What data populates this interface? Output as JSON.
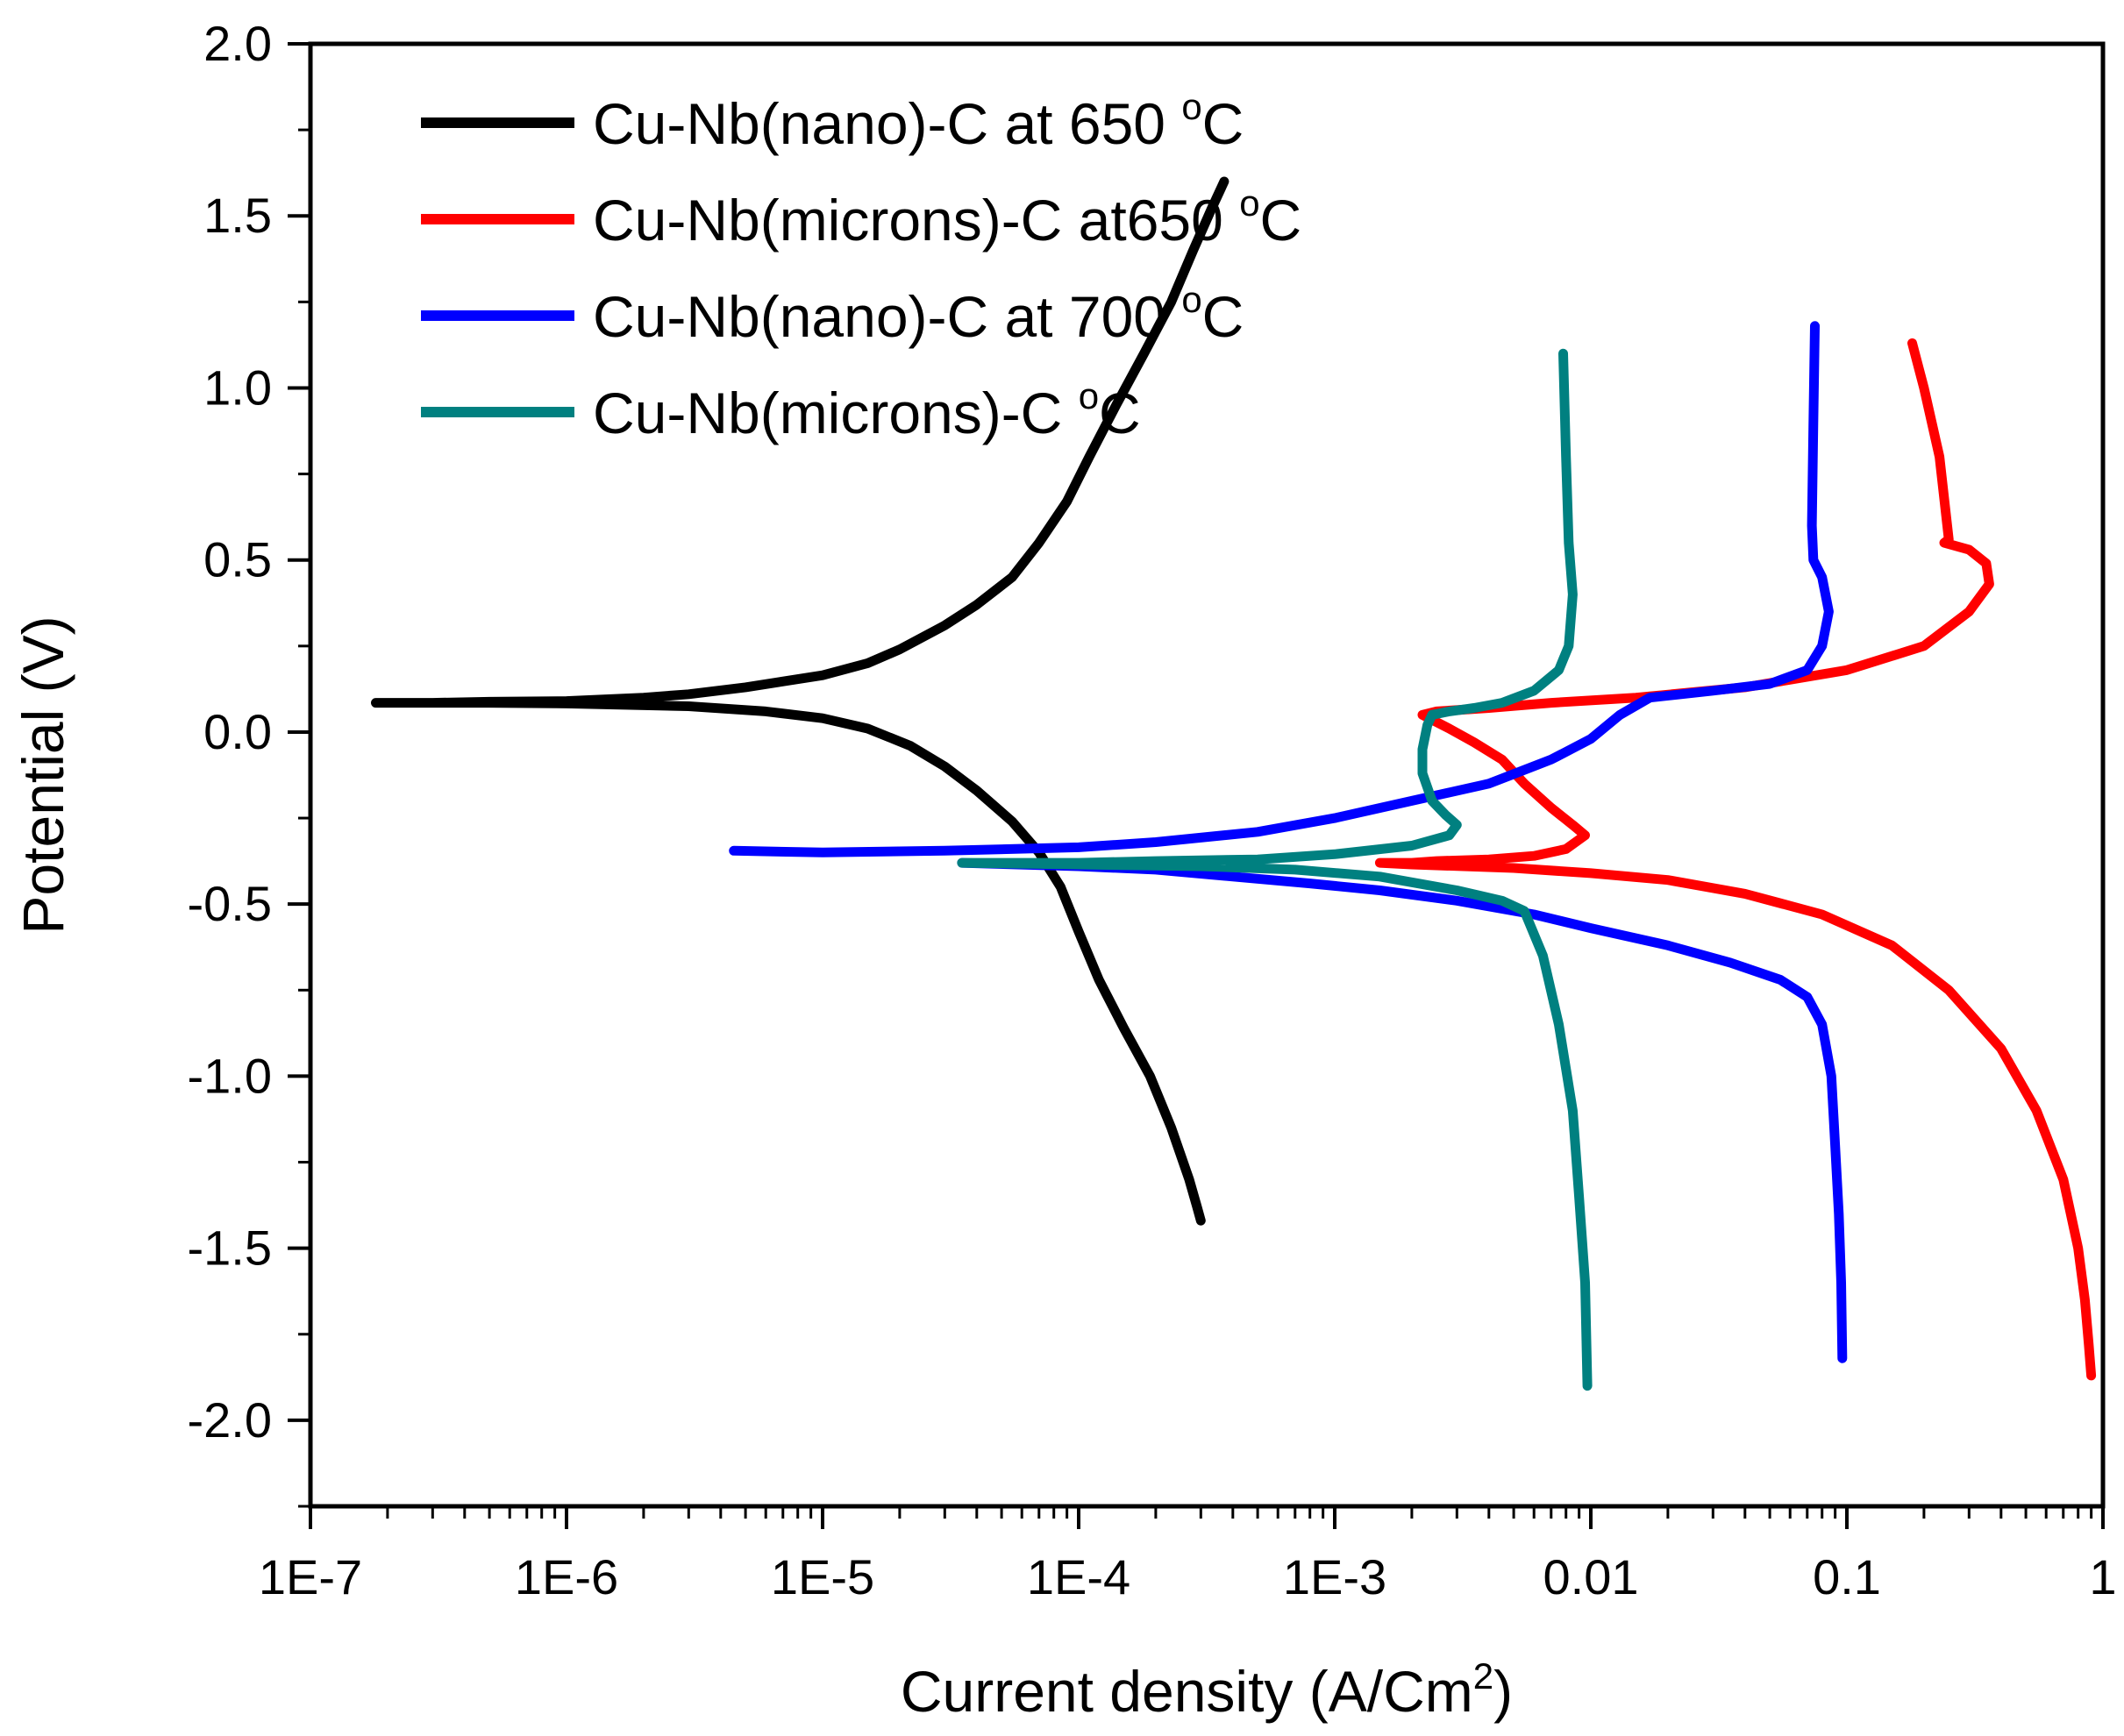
{
  "chart_data": {
    "type": "line",
    "title": "",
    "xlabel": "Current density (A/Cm",
    "xlabel_sup": "2",
    "xlabel_end": ")",
    "ylabel": "Potential (V)",
    "xscale": "log",
    "xlim": [
      1e-07,
      1
    ],
    "ylim": [
      -2.25,
      2.0
    ],
    "x_ticks": [
      1e-07,
      1e-06,
      1e-05,
      0.0001,
      0.001,
      0.01,
      0.1,
      1
    ],
    "x_tick_labels": [
      "1E-7",
      "1E-6",
      "1E-5",
      "1E-4",
      "1E-3",
      "0.01",
      "0.1",
      "1"
    ],
    "y_ticks": [
      -2.0,
      -1.5,
      -1.0,
      -0.5,
      0.0,
      0.5,
      1.0,
      1.5,
      2.0
    ],
    "y_tick_labels": [
      "-2.0",
      "-1.5",
      "-1.0",
      "-0.5",
      "0.0",
      "0.5",
      "1.0",
      "1.5",
      "2.0"
    ],
    "legend_position": "top-left",
    "series": [
      {
        "name": "Cu-Nb(nano)-C at 650",
        "unit": "C",
        "deg": "o",
        "color": "#000000",
        "x": [
          1.8e-07,
          3e-07,
          5e-07,
          1e-06,
          2e-06,
          3e-06,
          5e-06,
          1e-05,
          1.5e-05,
          2e-05,
          3e-05,
          4e-05,
          5.5e-05,
          7e-05,
          9e-05,
          0.00011,
          0.00014,
          0.00018,
          0.00023,
          0.00028,
          0.00033,
          0.00037,
          null,
          1.8e-07,
          5e-07,
          1e-06,
          3e-06,
          6e-06,
          1e-05,
          1.5e-05,
          2.2e-05,
          3e-05,
          4e-05,
          5.5e-05,
          7e-05,
          8.5e-05,
          0.0001,
          0.00012,
          0.00015,
          0.00019,
          0.00023,
          0.00027,
          0.00029,
          0.0003
        ],
        "y": [
          0.085,
          0.085,
          0.088,
          0.09,
          0.1,
          0.11,
          0.13,
          0.165,
          0.2,
          0.24,
          0.31,
          0.37,
          0.45,
          0.55,
          0.67,
          0.8,
          0.95,
          1.1,
          1.25,
          1.4,
          1.52,
          1.6,
          null,
          0.085,
          0.085,
          0.083,
          0.075,
          0.06,
          0.04,
          0.01,
          -0.04,
          -0.1,
          -0.17,
          -0.26,
          -0.35,
          -0.45,
          -0.58,
          -0.72,
          -0.86,
          -1.0,
          -1.15,
          -1.3,
          -1.38,
          -1.42
        ]
      },
      {
        "name": "Cu-Nb(microns)-C at650",
        "unit": "C",
        "deg": "o",
        "color": "#ff0000",
        "x": [
          0.18,
          0.2,
          0.23,
          0.25,
          0.24,
          0.3,
          0.35,
          0.36,
          0.3,
          0.2,
          0.1,
          0.04,
          0.015,
          0.007,
          0.004,
          0.0025,
          0.0022,
          null,
          0.0022,
          0.0028,
          0.0035,
          0.0045,
          0.0055,
          0.007,
          0.0085,
          0.0095,
          0.008,
          0.006,
          0.004,
          0.0025,
          0.002,
          0.0015,
          0.002,
          0.005,
          0.01,
          0.02,
          0.04,
          0.08,
          0.15,
          0.25,
          0.4,
          0.55,
          0.7,
          0.8,
          0.85,
          0.88,
          0.9
        ],
        "y": [
          1.13,
          1.0,
          0.8,
          0.56,
          0.55,
          0.53,
          0.49,
          0.43,
          0.35,
          0.25,
          0.18,
          0.13,
          0.1,
          0.085,
          0.07,
          0.06,
          0.05,
          null,
          0.05,
          0.01,
          -0.03,
          -0.08,
          -0.15,
          -0.22,
          -0.27,
          -0.3,
          -0.34,
          -0.36,
          -0.37,
          -0.375,
          -0.38,
          -0.38,
          -0.385,
          -0.395,
          -0.41,
          -0.43,
          -0.47,
          -0.53,
          -0.62,
          -0.75,
          -0.92,
          -1.1,
          -1.3,
          -1.5,
          -1.65,
          -1.78,
          -1.87
        ]
      },
      {
        "name": "Cu-Nb(nano)-C at 700",
        "unit": "C",
        "deg": "o",
        "color": "#0000ff",
        "x": [
          0.075,
          0.074,
          0.073,
          0.074,
          0.08,
          0.085,
          0.08,
          0.07,
          0.05,
          0.03,
          0.017,
          0.013,
          0.01,
          0.007,
          0.004,
          0.002,
          0.001,
          0.0005,
          0.0002,
          0.0001,
          3e-05,
          1e-05,
          4.5e-06,
          null,
          3.5e-05,
          0.0001,
          0.0002,
          0.0004,
          0.0008,
          0.0015,
          0.003,
          0.006,
          0.01,
          0.02,
          0.035,
          0.055,
          0.07,
          0.08,
          0.087,
          0.09,
          0.093,
          0.095,
          0.096
        ],
        "y": [
          1.18,
          0.9,
          0.6,
          0.5,
          0.45,
          0.35,
          0.25,
          0.18,
          0.14,
          0.12,
          0.1,
          0.05,
          -0.02,
          -0.08,
          -0.15,
          -0.2,
          -0.25,
          -0.29,
          -0.32,
          -0.335,
          -0.345,
          -0.35,
          -0.345,
          null,
          -0.38,
          -0.39,
          -0.4,
          -0.42,
          -0.44,
          -0.46,
          -0.49,
          -0.53,
          -0.57,
          -0.62,
          -0.67,
          -0.72,
          -0.77,
          -0.85,
          -1.0,
          -1.2,
          -1.4,
          -1.6,
          -1.82
        ]
      },
      {
        "name": "Cu-Nb(microns)-C",
        "unit": "C",
        "deg": "o",
        "color": "#008080",
        "x": [
          0.0078,
          0.008,
          0.0082,
          0.0085,
          0.0082,
          0.0075,
          0.006,
          0.0045,
          0.0035,
          0.0028,
          0.0024,
          0.0023,
          0.0022,
          0.0022,
          0.0024,
          0.0027,
          0.003,
          0.0028,
          0.002,
          0.001,
          0.0005,
          0.0002,
          0.0001,
          3.5e-05,
          null,
          3.5e-05,
          0.0001,
          0.0003,
          0.0007,
          0.0015,
          0.003,
          0.0045,
          0.0055,
          0.0065,
          0.0075,
          0.0085,
          0.009,
          0.0095,
          0.0097
        ],
        "y": [
          1.1,
          0.8,
          0.55,
          0.4,
          0.25,
          0.18,
          0.12,
          0.085,
          0.07,
          0.06,
          0.05,
          0.02,
          -0.05,
          -0.12,
          -0.2,
          -0.24,
          -0.27,
          -0.3,
          -0.33,
          -0.355,
          -0.37,
          -0.375,
          -0.38,
          -0.38,
          null,
          -0.38,
          -0.385,
          -0.39,
          -0.4,
          -0.42,
          -0.46,
          -0.49,
          -0.52,
          -0.65,
          -0.85,
          -1.1,
          -1.35,
          -1.6,
          -1.9
        ]
      }
    ]
  }
}
